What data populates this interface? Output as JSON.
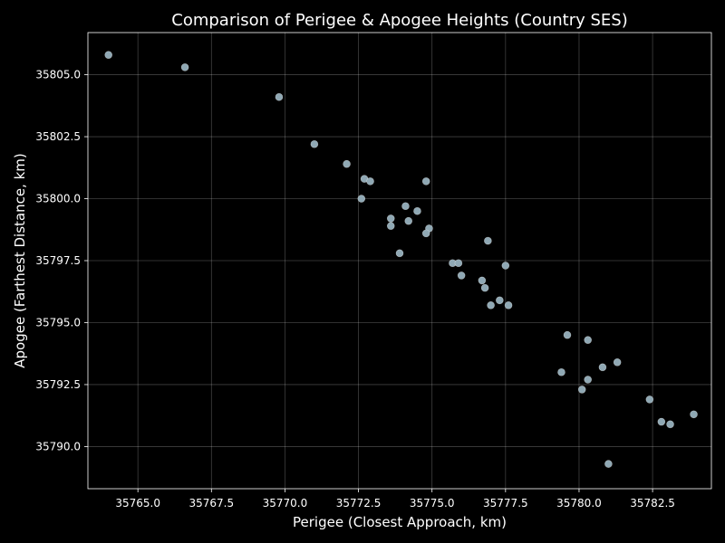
{
  "chart_data": {
    "type": "scatter",
    "title": "Comparison of Perigee & Apogee Heights (Country SES)",
    "xlabel": "Perigee (Closest Approach, km)",
    "ylabel": "Apogee (Farthest Distance, km)",
    "xlim": [
      35763.3,
      35784.5
    ],
    "ylim": [
      35788.3,
      35806.7
    ],
    "xticks": [
      35765.0,
      35767.5,
      35770.0,
      35772.5,
      35775.0,
      35777.5,
      35780.0,
      35782.5
    ],
    "xtick_labels": [
      "35765.0",
      "35767.5",
      "35770.0",
      "35772.5",
      "35775.0",
      "35777.5",
      "35780.0",
      "35782.5"
    ],
    "yticks": [
      35790.0,
      35792.5,
      35795.0,
      35797.5,
      35800.0,
      35802.5,
      35805.0
    ],
    "ytick_labels": [
      "35790.0",
      "35792.5",
      "35795.0",
      "35797.5",
      "35800.0",
      "35802.5",
      "35805.0"
    ],
    "grid": true,
    "point_color": "#8fa8b4",
    "points": [
      {
        "x": 35764.0,
        "y": 35805.8
      },
      {
        "x": 35766.6,
        "y": 35805.3
      },
      {
        "x": 35769.8,
        "y": 35804.1
      },
      {
        "x": 35771.0,
        "y": 35802.2
      },
      {
        "x": 35772.1,
        "y": 35801.4
      },
      {
        "x": 35772.7,
        "y": 35800.8
      },
      {
        "x": 35772.9,
        "y": 35800.7
      },
      {
        "x": 35774.8,
        "y": 35800.7
      },
      {
        "x": 35772.6,
        "y": 35800.0
      },
      {
        "x": 35774.1,
        "y": 35799.7
      },
      {
        "x": 35774.5,
        "y": 35799.5
      },
      {
        "x": 35773.6,
        "y": 35799.2
      },
      {
        "x": 35774.2,
        "y": 35799.1
      },
      {
        "x": 35773.6,
        "y": 35798.9
      },
      {
        "x": 35774.9,
        "y": 35798.8
      },
      {
        "x": 35774.8,
        "y": 35798.6
      },
      {
        "x": 35776.9,
        "y": 35798.3
      },
      {
        "x": 35773.9,
        "y": 35797.8
      },
      {
        "x": 35775.7,
        "y": 35797.4
      },
      {
        "x": 35775.9,
        "y": 35797.4
      },
      {
        "x": 35777.5,
        "y": 35797.3
      },
      {
        "x": 35776.0,
        "y": 35796.9
      },
      {
        "x": 35776.7,
        "y": 35796.7
      },
      {
        "x": 35776.8,
        "y": 35796.4
      },
      {
        "x": 35777.3,
        "y": 35795.9
      },
      {
        "x": 35777.0,
        "y": 35795.7
      },
      {
        "x": 35777.6,
        "y": 35795.7
      },
      {
        "x": 35779.6,
        "y": 35794.5
      },
      {
        "x": 35780.3,
        "y": 35794.3
      },
      {
        "x": 35781.3,
        "y": 35793.4
      },
      {
        "x": 35780.8,
        "y": 35793.2
      },
      {
        "x": 35779.4,
        "y": 35793.0
      },
      {
        "x": 35780.3,
        "y": 35792.7
      },
      {
        "x": 35780.1,
        "y": 35792.3
      },
      {
        "x": 35782.4,
        "y": 35791.9
      },
      {
        "x": 35782.8,
        "y": 35791.0
      },
      {
        "x": 35783.1,
        "y": 35790.9
      },
      {
        "x": 35783.9,
        "y": 35791.3
      },
      {
        "x": 35781.0,
        "y": 35789.3
      }
    ]
  }
}
